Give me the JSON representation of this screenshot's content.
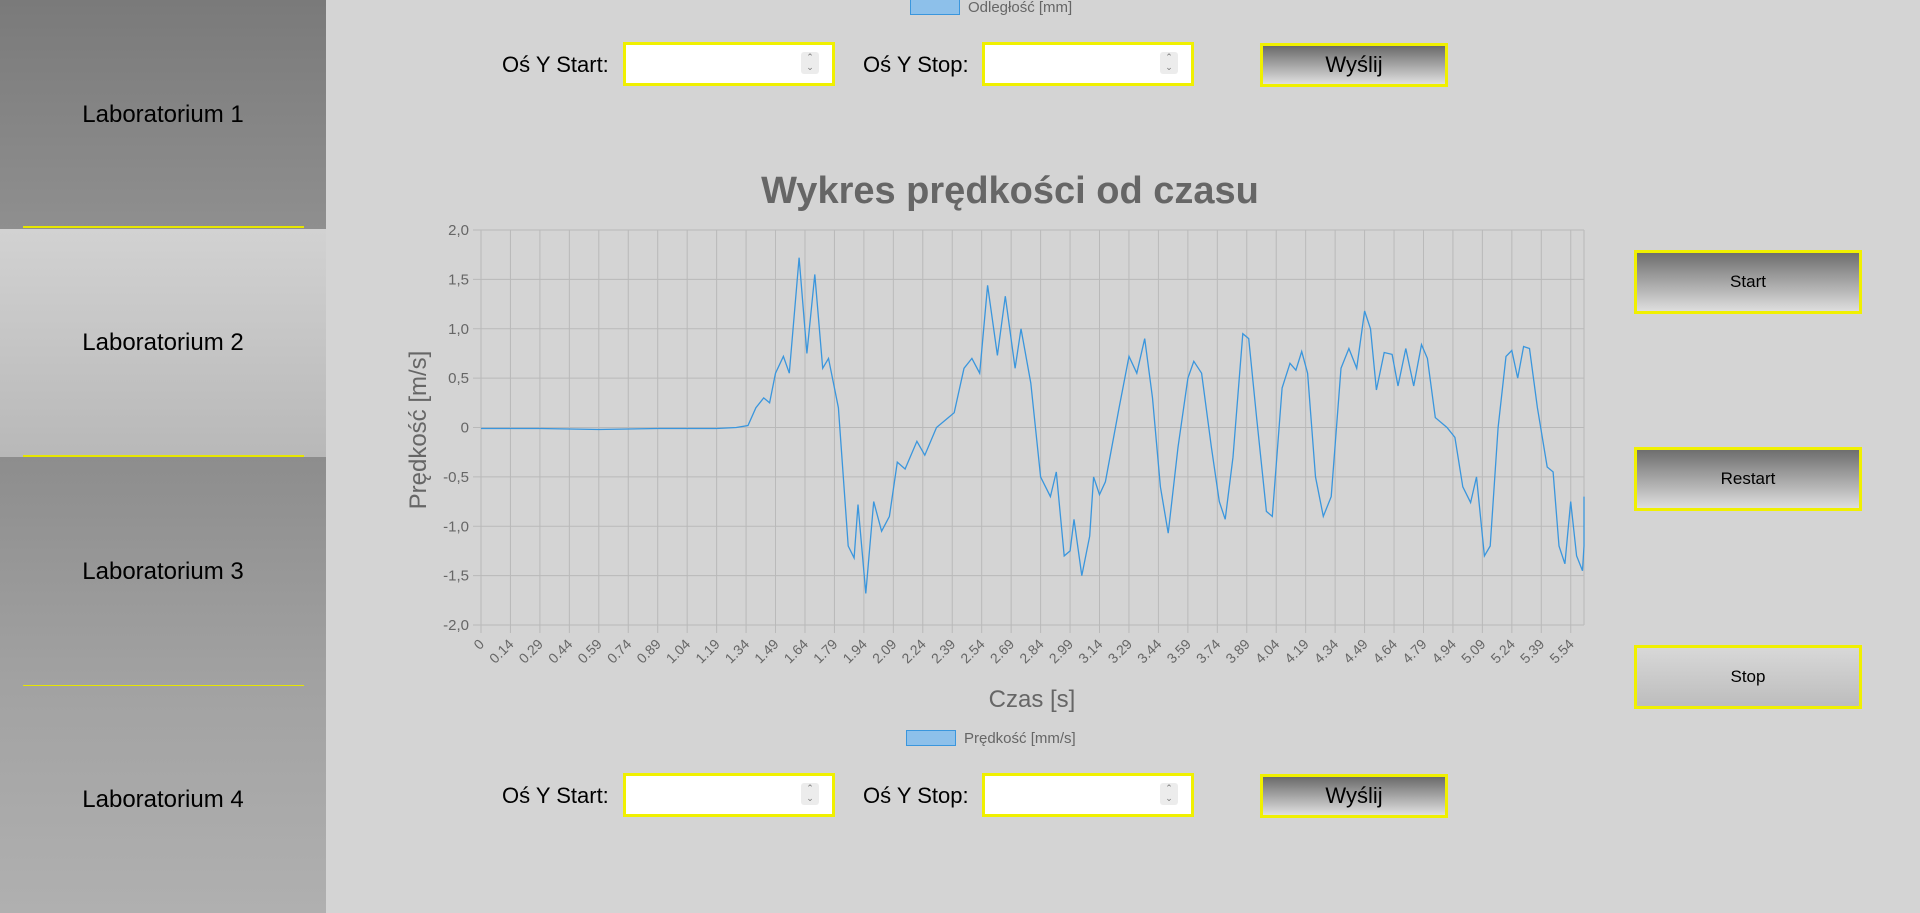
{
  "sidebar": {
    "items": [
      {
        "label": "Laboratorium 1"
      },
      {
        "label": "Laboratorium 2"
      },
      {
        "label": "Laboratorium 3"
      },
      {
        "label": "Laboratorium 4"
      }
    ]
  },
  "top_legend": {
    "label": "Odległość [mm]"
  },
  "top_form": {
    "y_start_label": "Oś Y Start:",
    "y_stop_label": "Oś Y Stop:",
    "y_start_value": "",
    "y_stop_value": "",
    "send_label": "Wyślij"
  },
  "bottom_form": {
    "y_start_label": "Oś Y Start:",
    "y_stop_label": "Oś Y Stop:",
    "y_start_value": "",
    "y_stop_value": "",
    "send_label": "Wyślij"
  },
  "controls": {
    "start": "Start",
    "restart": "Restart",
    "stop": "Stop"
  },
  "colors": {
    "accent": "#f0f000",
    "line": "#3a96dd",
    "fill": "#8dc0ea"
  },
  "chart_data": {
    "type": "line",
    "title": "Wykres prędkości od czasu",
    "xlabel": "Czas [s]",
    "ylabel": "Prędkość [m/s]",
    "ylim": [
      -2.0,
      2.0
    ],
    "y_ticks": [
      "-2,0",
      "-1,5",
      "-1,0",
      "-0,5",
      "0",
      "0,5",
      "1,0",
      "1,5",
      "2,0"
    ],
    "x_ticks": [
      "0",
      "0.14",
      "0.29",
      "0.44",
      "0.59",
      "0.74",
      "0.89",
      "1.04",
      "1.19",
      "1.34",
      "1.49",
      "1.64",
      "1.79",
      "1.94",
      "2.09",
      "2.24",
      "2.39",
      "2.54",
      "2.69",
      "2.84",
      "2.99",
      "3.14",
      "3.29",
      "3.44",
      "3.59",
      "3.74",
      "3.89",
      "4.04",
      "4.19",
      "4.34",
      "4.49",
      "4.64",
      "4.79",
      "4.94",
      "5.09",
      "5.24",
      "5.39",
      "5.54"
    ],
    "grid": true,
    "legend_position": "bottom",
    "series": [
      {
        "name": "Prędkość [mm/s]",
        "points": [
          [
            0,
            -0.01
          ],
          [
            0.3,
            -0.01
          ],
          [
            0.6,
            -0.02
          ],
          [
            0.9,
            -0.01
          ],
          [
            1.2,
            -0.01
          ],
          [
            1.3,
            0.0
          ],
          [
            1.36,
            0.02
          ],
          [
            1.4,
            0.2
          ],
          [
            1.44,
            0.3
          ],
          [
            1.47,
            0.25
          ],
          [
            1.5,
            0.55
          ],
          [
            1.54,
            0.72
          ],
          [
            1.57,
            0.55
          ],
          [
            1.62,
            1.72
          ],
          [
            1.66,
            0.75
          ],
          [
            1.7,
            1.55
          ],
          [
            1.74,
            0.6
          ],
          [
            1.77,
            0.7
          ],
          [
            1.82,
            0.2
          ],
          [
            1.87,
            -1.2
          ],
          [
            1.9,
            -1.32
          ],
          [
            1.92,
            -0.78
          ],
          [
            1.96,
            -1.68
          ],
          [
            2.0,
            -0.75
          ],
          [
            2.04,
            -1.05
          ],
          [
            2.08,
            -0.9
          ],
          [
            2.12,
            -0.35
          ],
          [
            2.16,
            -0.42
          ],
          [
            2.22,
            -0.14
          ],
          [
            2.26,
            -0.28
          ],
          [
            2.32,
            0.0
          ],
          [
            2.38,
            0.1
          ],
          [
            2.41,
            0.15
          ],
          [
            2.46,
            0.6
          ],
          [
            2.5,
            0.7
          ],
          [
            2.54,
            0.55
          ],
          [
            2.58,
            1.44
          ],
          [
            2.63,
            0.73
          ],
          [
            2.67,
            1.33
          ],
          [
            2.72,
            0.6
          ],
          [
            2.75,
            1.0
          ],
          [
            2.8,
            0.45
          ],
          [
            2.85,
            -0.5
          ],
          [
            2.9,
            -0.7
          ],
          [
            2.93,
            -0.45
          ],
          [
            2.97,
            -1.3
          ],
          [
            3.0,
            -1.25
          ],
          [
            3.02,
            -0.93
          ],
          [
            3.06,
            -1.5
          ],
          [
            3.1,
            -1.1
          ],
          [
            3.12,
            -0.5
          ],
          [
            3.15,
            -0.68
          ],
          [
            3.18,
            -0.55
          ],
          [
            3.25,
            0.2
          ],
          [
            3.3,
            0.72
          ],
          [
            3.34,
            0.55
          ],
          [
            3.38,
            0.9
          ],
          [
            3.42,
            0.3
          ],
          [
            3.46,
            -0.6
          ],
          [
            3.5,
            -1.07
          ],
          [
            3.55,
            -0.2
          ],
          [
            3.6,
            0.5
          ],
          [
            3.63,
            0.67
          ],
          [
            3.67,
            0.55
          ],
          [
            3.72,
            -0.2
          ],
          [
            3.76,
            -0.75
          ],
          [
            3.79,
            -0.93
          ],
          [
            3.83,
            -0.3
          ],
          [
            3.88,
            0.95
          ],
          [
            3.91,
            0.9
          ],
          [
            3.95,
            0.1
          ],
          [
            4.0,
            -0.85
          ],
          [
            4.03,
            -0.9
          ],
          [
            4.08,
            0.4
          ],
          [
            4.12,
            0.65
          ],
          [
            4.15,
            0.58
          ],
          [
            4.18,
            0.77
          ],
          [
            4.21,
            0.55
          ],
          [
            4.25,
            -0.5
          ],
          [
            4.29,
            -0.9
          ],
          [
            4.33,
            -0.7
          ],
          [
            4.38,
            0.6
          ],
          [
            4.42,
            0.8
          ],
          [
            4.46,
            0.6
          ],
          [
            4.5,
            1.18
          ],
          [
            4.53,
            1.0
          ],
          [
            4.56,
            0.38
          ],
          [
            4.6,
            0.76
          ],
          [
            4.64,
            0.74
          ],
          [
            4.67,
            0.42
          ],
          [
            4.71,
            0.8
          ],
          [
            4.75,
            0.42
          ],
          [
            4.79,
            0.84
          ],
          [
            4.82,
            0.7
          ],
          [
            4.86,
            0.1
          ],
          [
            4.92,
            0.0
          ],
          [
            4.96,
            -0.1
          ],
          [
            5.0,
            -0.6
          ],
          [
            5.04,
            -0.76
          ],
          [
            5.07,
            -0.5
          ],
          [
            5.11,
            -1.3
          ],
          [
            5.14,
            -1.2
          ],
          [
            5.18,
            0.0
          ],
          [
            5.22,
            0.72
          ],
          [
            5.25,
            0.78
          ],
          [
            5.28,
            0.5
          ],
          [
            5.31,
            0.82
          ],
          [
            5.34,
            0.8
          ],
          [
            5.38,
            0.2
          ],
          [
            5.43,
            -0.4
          ],
          [
            5.46,
            -0.45
          ],
          [
            5.49,
            -1.2
          ],
          [
            5.52,
            -1.38
          ],
          [
            5.55,
            -0.75
          ],
          [
            5.58,
            -1.3
          ],
          [
            5.61,
            -1.45
          ],
          [
            5.64,
            -1.2
          ],
          [
            5.66,
            -0.7
          ],
          [
            5.67,
            -0.87
          ]
        ]
      }
    ]
  }
}
